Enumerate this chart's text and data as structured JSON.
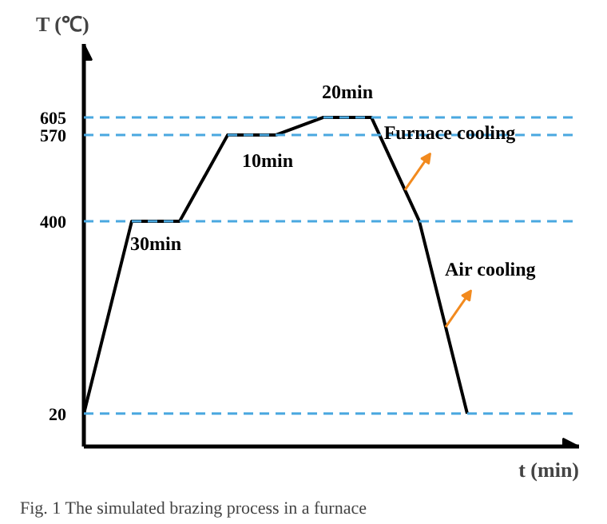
{
  "chart_data": {
    "type": "line",
    "ylabel": "T (℃)",
    "xlabel": "t (min)",
    "categories": [
      null,
      null,
      null,
      null,
      null,
      null,
      null,
      null,
      null
    ],
    "values": [
      20,
      400,
      400,
      570,
      570,
      605,
      605,
      400,
      20
    ],
    "color": "#000000",
    "line_style": "solid",
    "marker": "none",
    "ylim": [
      -45,
      750
    ],
    "yticks": [
      20,
      400,
      570,
      605
    ],
    "tick_labels": "y",
    "grid": false,
    "legend": false,
    "ref_lines": [
      {
        "axis": "y",
        "value": 20,
        "label": null,
        "color": "#4aa8e0",
        "line_style": "dashed"
      },
      {
        "axis": "y",
        "value": 400,
        "label": null,
        "color": "#4aa8e0",
        "line_style": "dashed"
      },
      {
        "axis": "y",
        "value": 570,
        "label": null,
        "color": "#4aa8e0",
        "line_style": "dashed"
      },
      {
        "axis": "y",
        "value": 605,
        "label": null,
        "color": "#4aa8e0",
        "line_style": "dashed"
      }
    ],
    "annotations": [
      "30min",
      "10min",
      "20min",
      "Furnace cooling",
      "Air cooling",
      "Fig. 1    The simulated brazing process in a furnace"
    ]
  }
}
